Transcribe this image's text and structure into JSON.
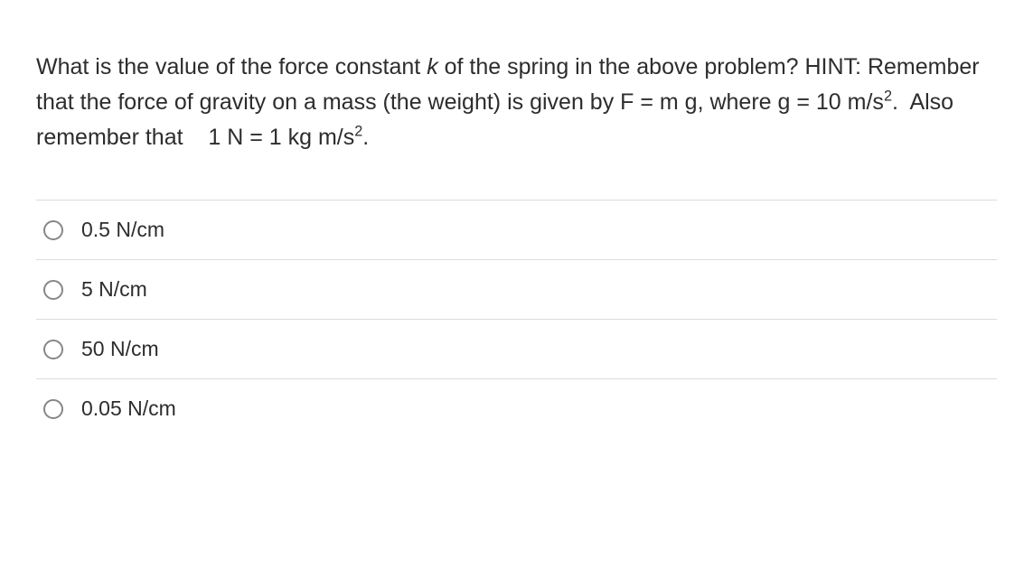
{
  "question": {
    "text_html": "What is the value of the force constant <em>k</em> of the spring in the above problem? HINT: Remember that the force of gravity on a mass (the weight) is given by F = m g, where g = 10 m/s<sup>2</sup>.&nbsp; Also remember that &nbsp;&nbsp;&nbsp;1 N = 1 kg m/s<sup>2</sup>.",
    "text_fontsize": 25,
    "text_color": "#2d2d2d",
    "line_height": 1.55
  },
  "options": [
    {
      "label": "0.5 N/cm",
      "selected": false
    },
    {
      "label": "5 N/cm",
      "selected": false
    },
    {
      "label": "50 N/cm",
      "selected": false
    },
    {
      "label": "0.05 N/cm",
      "selected": false
    }
  ],
  "styling": {
    "background_color": "#ffffff",
    "border_color": "#dcdcdc",
    "radio_border_color": "#878787",
    "radio_size": 22,
    "option_fontsize": 23,
    "option_padding_vertical": 19,
    "body_width": 1143,
    "body_padding": 40
  }
}
